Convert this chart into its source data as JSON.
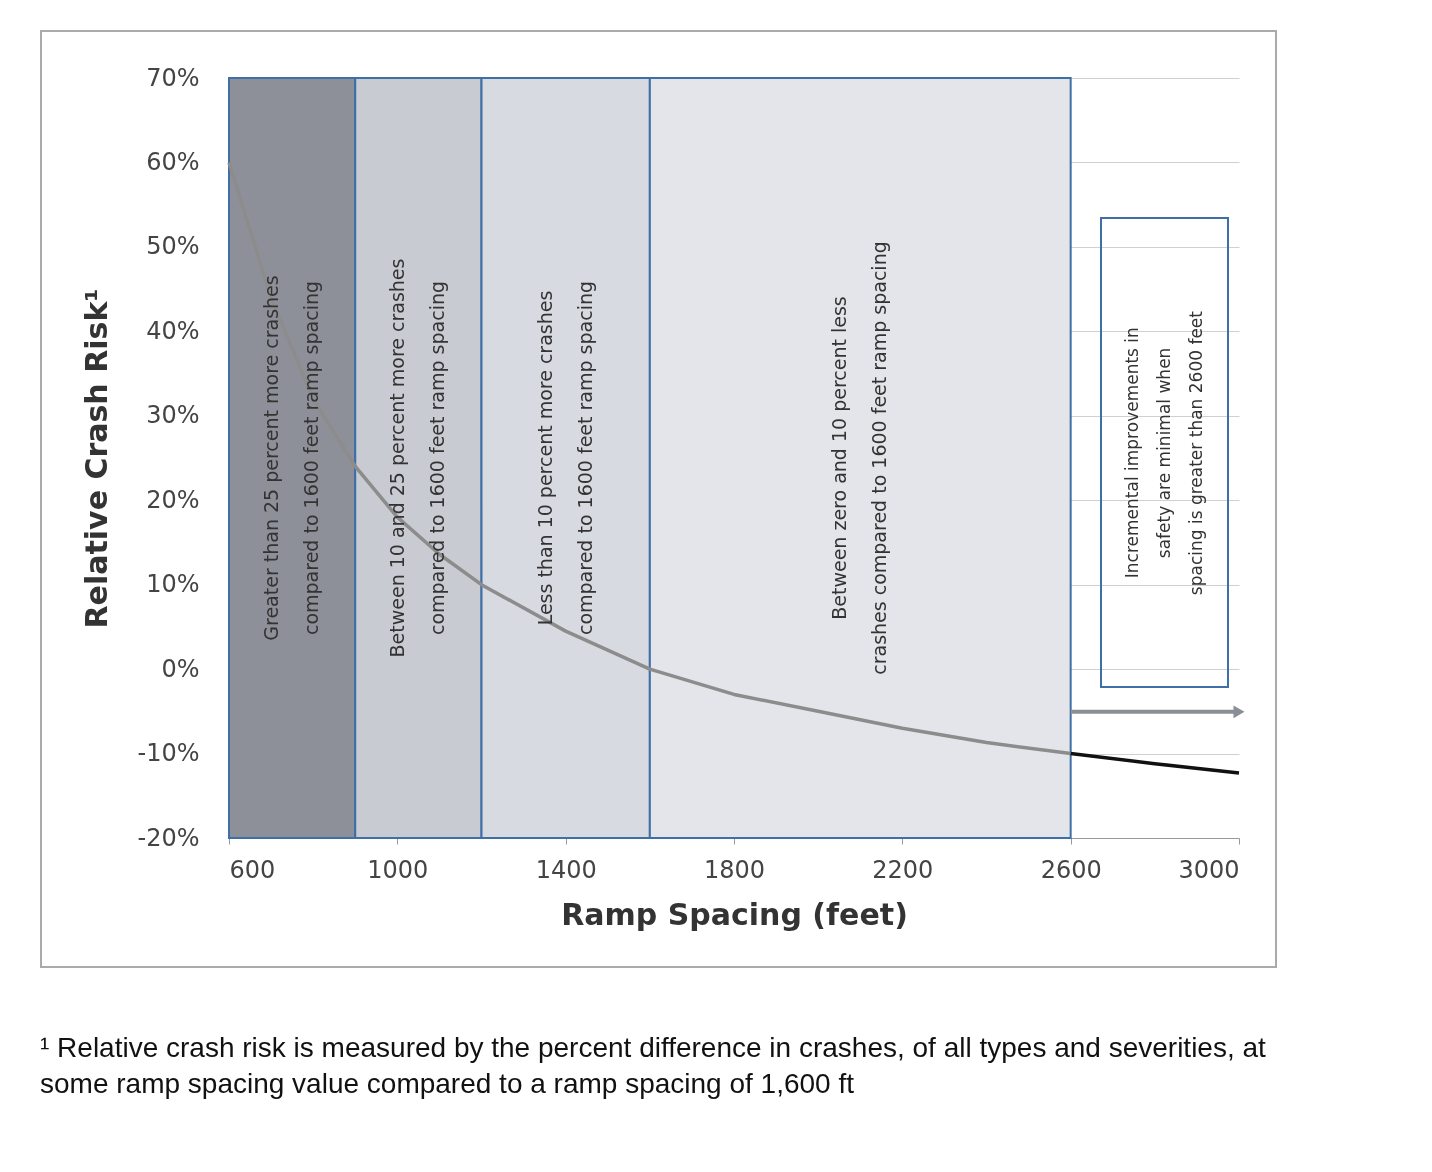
{
  "chart_data": {
    "type": "line",
    "xlabel": "Ramp Spacing (feet)",
    "ylabel": "Relative Crash Risk¹",
    "xlim": [
      600,
      3000
    ],
    "xticks": [
      600,
      1000,
      1400,
      1800,
      2200,
      2600,
      3000
    ],
    "ylim": [
      -20,
      70
    ],
    "yticks": [
      {
        "value": -20,
        "label": "-20%"
      },
      {
        "value": -10,
        "label": "-10%"
      },
      {
        "value": 0,
        "label": "0%"
      },
      {
        "value": 10,
        "label": "10%"
      },
      {
        "value": 20,
        "label": "20%"
      },
      {
        "value": 30,
        "label": "30%"
      },
      {
        "value": 40,
        "label": "40%"
      },
      {
        "value": 50,
        "label": "50%"
      },
      {
        "value": 60,
        "label": "60%"
      },
      {
        "value": 70,
        "label": "70%"
      }
    ],
    "grid": "y",
    "marker": "none",
    "line_style": "solid",
    "legend": false,
    "series": [
      {
        "color": "#8c8c8c",
        "x": [
          600,
          700,
          800,
          900,
          1000,
          1100,
          1200,
          1400,
          1600,
          1800,
          2000,
          2200,
          2400,
          2600
        ],
        "values": [
          60,
          44,
          32,
          24,
          18,
          13.6,
          10,
          4.5,
          0,
          -3,
          -5,
          -7,
          -8.7,
          -10
        ]
      },
      {
        "color": "#111111",
        "x": [
          2600,
          2800,
          3000
        ],
        "values": [
          -10,
          -11.2,
          -12.3
        ]
      }
    ],
    "bands": [
      {
        "axis": "x",
        "from": 600,
        "to": 900,
        "color": "#8e9099",
        "label": "Greater than 25 percent more crashes compared to 1600 feet ramp spacing"
      },
      {
        "axis": "x",
        "from": 900,
        "to": 1200,
        "color": "#c9cbd3",
        "label": "Between 10 and 25 percent more crashes compared to 1600 feet ramp spacing"
      },
      {
        "axis": "x",
        "from": 1200,
        "to": 1600,
        "color": "#d8dae1",
        "label": "Less than 10 percent more crashes compared to 1600 feet ramp spacing"
      },
      {
        "axis": "x",
        "from": 1600,
        "to": 2600,
        "color": "#e3e5ea",
        "label": "Between zero and 10 percent less crashes compared to 1600 feet ramp spacing"
      }
    ],
    "annotations": [
      "Incremental improvements in safety are minimal when spacing is greater than 2600 feet",
      "¹ Relative crash risk is measured by the percent difference in crashes, of all types and severities, at some ramp spacing value compared to a ramp spacing of 1,600 ft"
    ]
  }
}
